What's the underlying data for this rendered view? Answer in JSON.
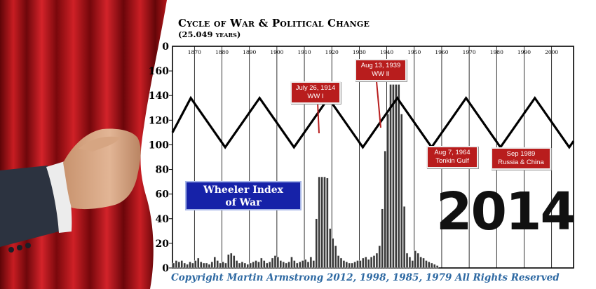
{
  "title": "Cycle of War & Political Change",
  "subtitle": "(25.049 years)",
  "copyright": "Copyright Martin Armstrong 2012, 1998, 1985, 1979 All Rights Reserved",
  "legend_box": {
    "line1": "Wheeler Index",
    "line2": "of War",
    "bg_color": "#1622a8"
  },
  "big_label": "2014",
  "events": [
    {
      "date": "July 26, 1914",
      "label": "WW I"
    },
    {
      "date": "Aug 13, 1939",
      "label": "WW II"
    },
    {
      "date": "Aug 7, 1964",
      "label": "Tonkin Gulf"
    },
    {
      "date": "Sep 1989",
      "label": "Russia & China"
    }
  ],
  "colors": {
    "curtain": "#b5161a",
    "event_box": "#b81d1d",
    "copyright_text": "#2f6aa3",
    "cycle_line": "#000000"
  },
  "chart_data": {
    "type": "bar",
    "x_ticks": [
      1870,
      1880,
      1890,
      1900,
      1910,
      1920,
      1930,
      1940,
      1950,
      1960,
      1970,
      1980,
      1990,
      2000
    ],
    "y_ticks": [
      0,
      20,
      40,
      60,
      80,
      100,
      120,
      140,
      160
    ],
    "y_top_label": "0",
    "xlim": [
      1862,
      2008
    ],
    "ylim": [
      0,
      180
    ],
    "grid": "vertical lines at each decade",
    "series": [
      {
        "type": "bar",
        "x": [
          1862,
          1863,
          1864,
          1865,
          1866,
          1867,
          1868,
          1869,
          1870,
          1871,
          1872,
          1873,
          1874,
          1875,
          1876,
          1877,
          1878,
          1879,
          1880,
          1881,
          1882,
          1883,
          1884,
          1885,
          1886,
          1887,
          1888,
          1889,
          1890,
          1891,
          1892,
          1893,
          1894,
          1895,
          1896,
          1897,
          1898,
          1899,
          1900,
          1901,
          1902,
          1903,
          1904,
          1905,
          1906,
          1907,
          1908,
          1909,
          1910,
          1911,
          1912,
          1913,
          1914,
          1915,
          1916,
          1917,
          1918,
          1919,
          1920,
          1921,
          1922,
          1923,
          1924,
          1925,
          1926,
          1927,
          1928,
          1929,
          1930,
          1931,
          1932,
          1933,
          1934,
          1935,
          1936,
          1937,
          1938,
          1939,
          1940,
          1941,
          1942,
          1943,
          1944,
          1945,
          1946,
          1947,
          1948,
          1949,
          1950,
          1951,
          1952,
          1953,
          1954,
          1955,
          1956,
          1957,
          1958
        ],
        "values": [
          4,
          6,
          5,
          6,
          4,
          3,
          5,
          4,
          6,
          8,
          5,
          4,
          4,
          3,
          5,
          9,
          6,
          4,
          5,
          4,
          11,
          12,
          10,
          6,
          4,
          5,
          4,
          3,
          4,
          5,
          6,
          5,
          8,
          6,
          4,
          5,
          8,
          10,
          9,
          6,
          5,
          4,
          5,
          9,
          6,
          4,
          5,
          6,
          7,
          5,
          9,
          6,
          40,
          74,
          74,
          74,
          73,
          32,
          24,
          18,
          10,
          8,
          6,
          5,
          4,
          4,
          5,
          6,
          6,
          8,
          9,
          7,
          9,
          10,
          12,
          18,
          48,
          95,
          125,
          149,
          149,
          149,
          149,
          125,
          50,
          12,
          9,
          6,
          14,
          12,
          9,
          8,
          6,
          5,
          4,
          3,
          2
        ]
      },
      {
        "type": "line",
        "name": "Cycle of War & Political Change",
        "x": [
          1862,
          1868.66,
          1881.18,
          1893.71,
          1906.23,
          1918.76,
          1931.28,
          1943.81,
          1956.33,
          1968.86,
          1981.38,
          1993.91,
          2006.43,
          2008
        ],
        "y": [
          110,
          138,
          98,
          138,
          98,
          138,
          98,
          138,
          98,
          138,
          98,
          138,
          98,
          103
        ]
      }
    ]
  }
}
